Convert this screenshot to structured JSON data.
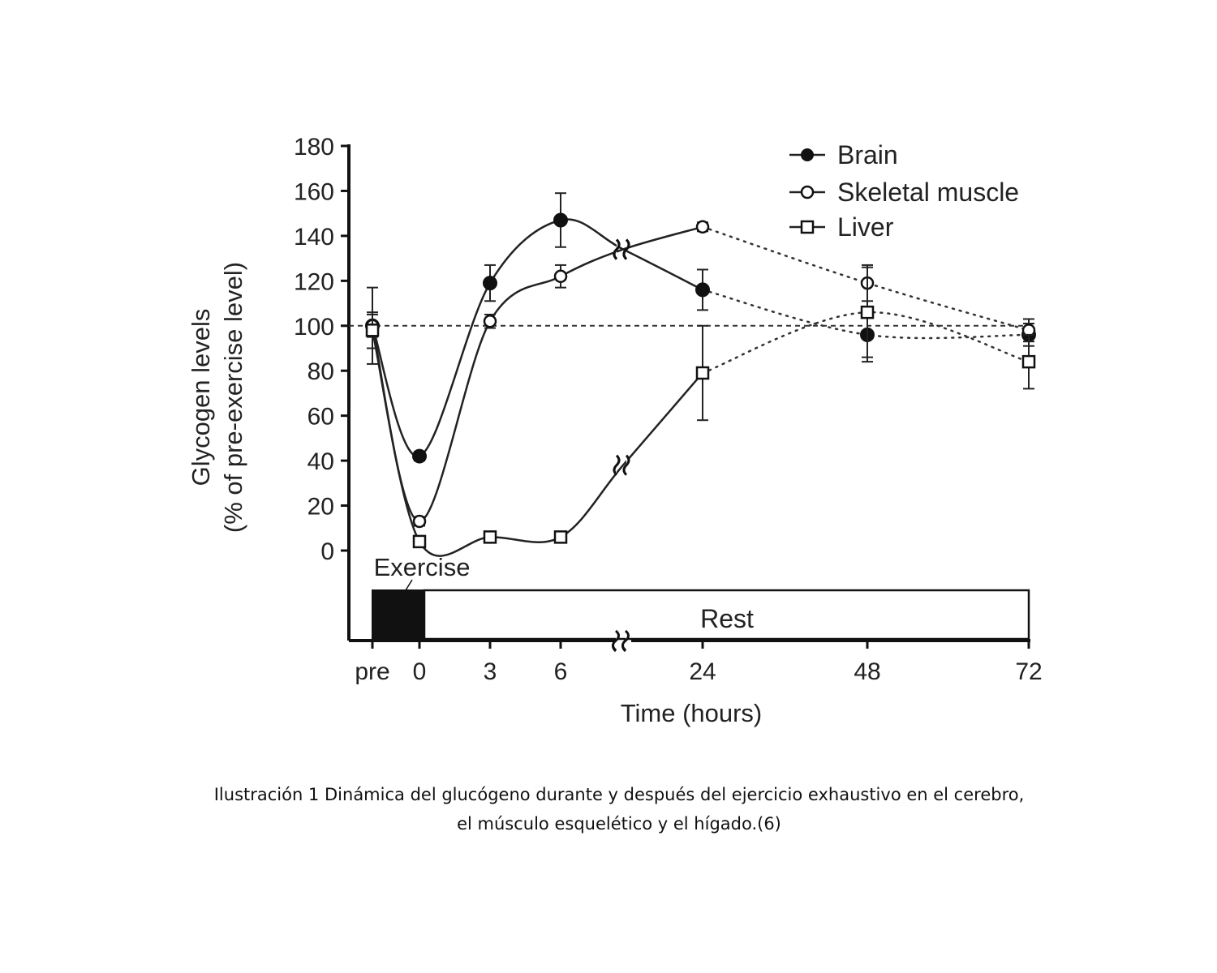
{
  "chart_data": {
    "type": "line",
    "ylabel_line1": "Glycogen levels",
    "ylabel_line2": "(% of pre-exercise level)",
    "xlabel": "Time (hours)",
    "ylim": [
      0,
      180
    ],
    "yticks": [
      0,
      20,
      40,
      60,
      80,
      100,
      120,
      140,
      160,
      180
    ],
    "categories": [
      "pre",
      "0",
      "3",
      "6",
      "24",
      "48",
      "72"
    ],
    "reference_line": 100,
    "legend_position": "top-right",
    "grid": false,
    "series": [
      {
        "name": "Brain",
        "marker": "filled-circle",
        "x": [
          "pre",
          "0",
          "3",
          "6",
          "24",
          "48",
          "72"
        ],
        "y": [
          100,
          42,
          119,
          147,
          116,
          96,
          96
        ],
        "error": [
          17,
          2,
          8,
          12,
          9,
          12,
          5
        ]
      },
      {
        "name": "Skeletal muscle",
        "marker": "open-circle",
        "x": [
          "pre",
          "0",
          "3",
          "6",
          "24",
          "48",
          "72"
        ],
        "y": [
          100,
          13,
          102,
          122,
          144,
          119,
          98
        ],
        "error": [
          5,
          2,
          3,
          5,
          2,
          8,
          5
        ]
      },
      {
        "name": "Liver",
        "marker": "open-square",
        "x": [
          "pre",
          "0",
          "3",
          "6",
          "24",
          "48",
          "72"
        ],
        "y": [
          98,
          4,
          6,
          6,
          79,
          106,
          84
        ],
        "error": [
          8,
          1,
          1,
          1,
          21,
          20,
          12
        ]
      }
    ],
    "phase_labels": {
      "exercise": "Exercise",
      "rest": "Rest"
    }
  },
  "caption": {
    "line1": "Ilustración 1 Dinámica del glucógeno durante y después del ejercicio exhaustivo en el cerebro,",
    "line2": "el músculo esquelético y el hígado.(6)"
  }
}
